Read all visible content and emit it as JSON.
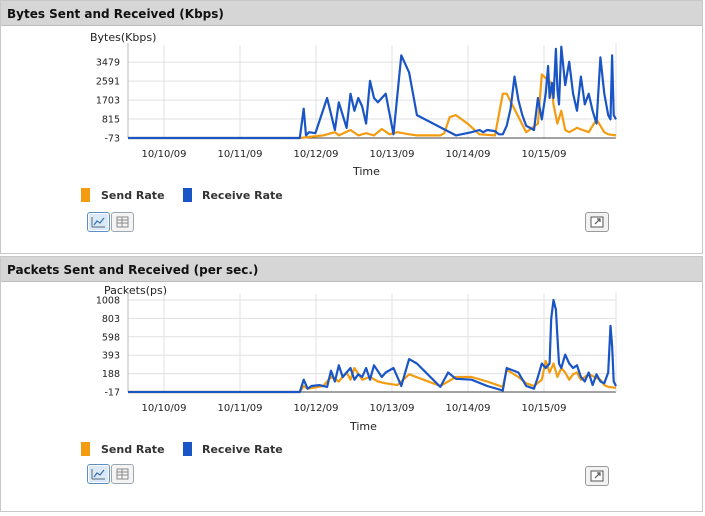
{
  "panels": [
    {
      "title": "Bytes Sent and Received (Kbps)",
      "legend": [
        {
          "label": "Send Rate",
          "color": "#f39c12"
        },
        {
          "label": "Receive Rate",
          "color": "#1a55c5"
        }
      ]
    },
    {
      "title": "Packets Sent and Received (per sec.)",
      "legend": [
        {
          "label": "Send Rate",
          "color": "#f39c12"
        },
        {
          "label": "Receive Rate",
          "color": "#1a55c5"
        }
      ]
    }
  ],
  "chart_data": [
    {
      "type": "line",
      "title": "Bytes Sent and Received (Kbps)",
      "xlabel": "Time",
      "ylabel": "Bytes(Kbps)",
      "ylim": [
        -73,
        4000
      ],
      "yticks": [
        "-73",
        "815",
        "1703",
        "2591",
        "3479"
      ],
      "xlim": [
        0,
        6.25
      ],
      "xticks": [
        "10/10/09",
        "10/11/09",
        "10/12/09",
        "10/13/09",
        "10/14/09",
        "10/15/09"
      ],
      "grid": true,
      "series": [
        {
          "name": "Send Rate",
          "color": "#f39c12",
          "x": [
            0,
            2.2,
            2.5,
            2.65,
            2.7,
            2.85,
            2.95,
            3.05,
            3.15,
            3.25,
            3.35,
            3.45,
            3.6,
            3.7,
            4.0,
            4.05,
            4.12,
            4.2,
            4.35,
            4.5,
            4.7,
            4.8,
            4.85,
            5.1,
            5.25,
            5.3,
            5.42,
            5.45,
            5.5,
            5.55,
            5.6,
            5.65,
            5.75,
            5.9,
            6.0,
            6.1,
            6.15,
            6.25
          ],
          "y": [
            -73,
            -73,
            50,
            200,
            50,
            300,
            50,
            150,
            50,
            350,
            100,
            200,
            100,
            50,
            50,
            150,
            900,
            1000,
            600,
            100,
            50,
            2000,
            2000,
            200,
            600,
            2900,
            2500,
            1500,
            600,
            1200,
            300,
            200,
            400,
            200,
            800,
            200,
            100,
            50
          ]
        },
        {
          "name": "Receive Rate",
          "color": "#1a55c5",
          "x": [
            0,
            2.2,
            2.25,
            2.28,
            2.32,
            2.4,
            2.55,
            2.65,
            2.7,
            2.75,
            2.8,
            2.85,
            2.9,
            2.95,
            3.0,
            3.05,
            3.1,
            3.15,
            3.2,
            3.3,
            3.4,
            3.5,
            3.6,
            3.65,
            3.7,
            4.2,
            4.4,
            4.5,
            4.55,
            4.6,
            4.7,
            4.75,
            4.8,
            4.85,
            4.9,
            4.95,
            5.0,
            5.05,
            5.1,
            5.15,
            5.2,
            5.25,
            5.3,
            5.35,
            5.38,
            5.4,
            5.43,
            5.45,
            5.48,
            5.5,
            5.52,
            5.55,
            5.6,
            5.65,
            5.7,
            5.75,
            5.8,
            5.85,
            5.9,
            5.95,
            6.0,
            6.05,
            6.1,
            6.15,
            6.18,
            6.2,
            6.22,
            6.25
          ],
          "y": [
            -73,
            -73,
            1300,
            50,
            200,
            150,
            1800,
            300,
            1600,
            1000,
            400,
            2000,
            1200,
            1800,
            1400,
            600,
            2600,
            1800,
            1600,
            2000,
            100,
            3800,
            3000,
            2000,
            1000,
            50,
            200,
            300,
            200,
            300,
            250,
            100,
            100,
            500,
            1300,
            2800,
            1700,
            1000,
            500,
            400,
            300,
            1800,
            800,
            2000,
            3300,
            1800,
            2500,
            1800,
            4100,
            2200,
            1500,
            4200,
            2400,
            3500,
            2000,
            1200,
            2800,
            1500,
            2000,
            1200,
            600,
            3700,
            2000,
            1000,
            800,
            3800,
            1000,
            800
          ]
        }
      ]
    },
    {
      "type": "line",
      "title": "Packets Sent and Received (per sec.)",
      "xlabel": "Time",
      "ylabel": "Packets(ps)",
      "ylim": [
        -17,
        1008
      ],
      "yticks": [
        "-17",
        "188",
        "393",
        "598",
        "803",
        "1008"
      ],
      "xlim": [
        0,
        6.25
      ],
      "xticks": [
        "10/10/09",
        "10/11/09",
        "10/12/09",
        "10/13/09",
        "10/14/09",
        "10/15/09"
      ],
      "grid": true,
      "series": [
        {
          "name": "Send Rate",
          "color": "#f39c12",
          "x": [
            0,
            2.2,
            2.25,
            2.3,
            2.5,
            2.6,
            2.7,
            2.8,
            2.85,
            2.9,
            3.0,
            3.1,
            3.2,
            3.3,
            3.45,
            3.6,
            4.0,
            4.2,
            4.4,
            4.6,
            4.8,
            4.85,
            5.0,
            5.1,
            5.2,
            5.3,
            5.35,
            5.4,
            5.45,
            5.5,
            5.55,
            5.6,
            5.65,
            5.7,
            5.75,
            5.8,
            5.9,
            6.0,
            6.05,
            6.1,
            6.15,
            6.25
          ],
          "y": [
            -17,
            -17,
            50,
            20,
            50,
            150,
            100,
            200,
            120,
            250,
            120,
            150,
            100,
            80,
            60,
            180,
            50,
            150,
            150,
            100,
            40,
            230,
            150,
            80,
            50,
            120,
            330,
            200,
            300,
            150,
            250,
            200,
            120,
            180,
            200,
            120,
            180,
            140,
            120,
            60,
            40,
            30
          ]
        },
        {
          "name": "Receive Rate",
          "color": "#1a55c5",
          "x": [
            0,
            2.2,
            2.25,
            2.3,
            2.35,
            2.45,
            2.55,
            2.6,
            2.65,
            2.7,
            2.75,
            2.8,
            2.85,
            2.9,
            2.95,
            3.0,
            3.05,
            3.1,
            3.15,
            3.25,
            3.3,
            3.4,
            3.5,
            3.6,
            3.7,
            4.0,
            4.1,
            4.2,
            4.4,
            4.6,
            4.8,
            4.85,
            5.0,
            5.1,
            5.2,
            5.25,
            5.3,
            5.35,
            5.4,
            5.42,
            5.45,
            5.48,
            5.5,
            5.52,
            5.55,
            5.6,
            5.65,
            5.7,
            5.75,
            5.8,
            5.85,
            5.9,
            5.95,
            6.0,
            6.05,
            6.1,
            6.15,
            6.18,
            6.2,
            6.22,
            6.25
          ],
          "y": [
            -17,
            -17,
            120,
            20,
            50,
            60,
            40,
            220,
            100,
            280,
            150,
            200,
            250,
            120,
            180,
            150,
            250,
            120,
            280,
            150,
            200,
            250,
            50,
            350,
            300,
            40,
            200,
            130,
            120,
            50,
            0,
            250,
            200,
            50,
            20,
            150,
            300,
            250,
            300,
            800,
            1008,
            900,
            600,
            300,
            250,
            400,
            300,
            250,
            280,
            150,
            100,
            200,
            60,
            180,
            100,
            80,
            200,
            720,
            500,
            100,
            50
          ]
        }
      ]
    }
  ]
}
